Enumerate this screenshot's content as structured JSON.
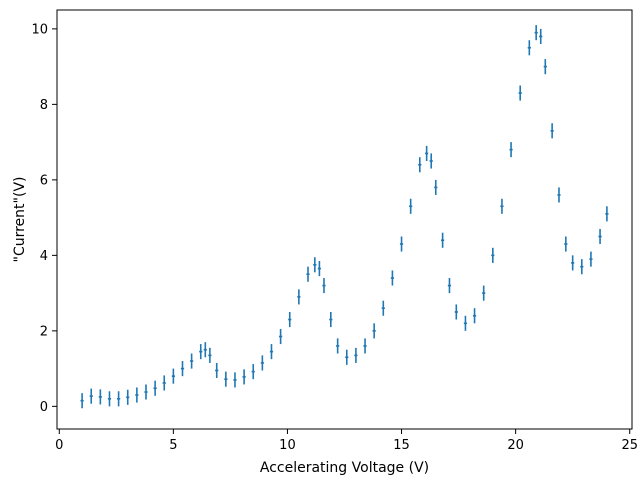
{
  "chart_data": {
    "type": "scatter",
    "title": "",
    "xlabel": "Accelerating Voltage (V)",
    "ylabel": "\"Current\"(V)",
    "xlim": [
      -0.1,
      25.1
    ],
    "ylim": [
      -0.6,
      10.5
    ],
    "xticks": [
      0,
      5,
      10,
      15,
      20,
      25
    ],
    "yticks": [
      0,
      2,
      4,
      6,
      8,
      10
    ],
    "grid": false,
    "marker": "errorbar",
    "color": "#1f77b4",
    "error_bar": 0.2,
    "series": [
      {
        "x": [
          1.0,
          1.4,
          1.8,
          2.2,
          2.6,
          3.0,
          3.4,
          3.8,
          4.2,
          4.6,
          5.0,
          5.4,
          5.8,
          6.2,
          6.4,
          6.6,
          6.9,
          7.3,
          7.7,
          8.1,
          8.5,
          8.9,
          9.3,
          9.7,
          10.1,
          10.5,
          10.9,
          11.2,
          11.4,
          11.6,
          11.9,
          12.2,
          12.6,
          13.0,
          13.4,
          13.8,
          14.2,
          14.6,
          15.0,
          15.4,
          15.8,
          16.1,
          16.3,
          16.5,
          16.8,
          17.1,
          17.4,
          17.8,
          18.2,
          18.6,
          19.0,
          19.4,
          19.8,
          20.2,
          20.6,
          20.9,
          21.1,
          21.3,
          21.6,
          21.9,
          22.2,
          22.5,
          22.9,
          23.3,
          23.7,
          24.0
        ],
        "y": [
          0.15,
          0.27,
          0.25,
          0.2,
          0.2,
          0.24,
          0.3,
          0.38,
          0.48,
          0.62,
          0.8,
          1.0,
          1.2,
          1.45,
          1.5,
          1.35,
          0.95,
          0.72,
          0.7,
          0.78,
          0.92,
          1.15,
          1.45,
          1.85,
          2.3,
          2.9,
          3.5,
          3.75,
          3.65,
          3.2,
          2.3,
          1.6,
          1.3,
          1.35,
          1.6,
          2.0,
          2.6,
          3.4,
          4.3,
          5.3,
          6.4,
          6.7,
          6.5,
          5.8,
          4.4,
          3.2,
          2.5,
          2.2,
          2.4,
          3.0,
          4.0,
          5.3,
          6.8,
          8.3,
          9.5,
          9.9,
          9.8,
          9.0,
          7.3,
          5.6,
          4.3,
          3.8,
          3.7,
          3.9,
          4.5,
          5.1
        ]
      }
    ]
  }
}
